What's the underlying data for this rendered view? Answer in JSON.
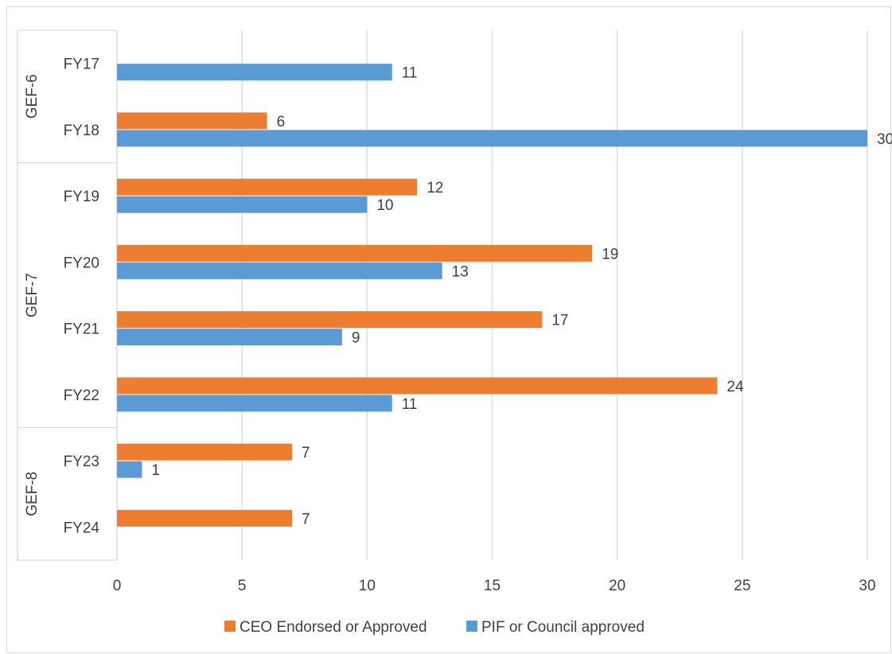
{
  "chart_data": {
    "type": "bar",
    "orientation": "horizontal",
    "title": "",
    "xlabel": "",
    "ylabel": "",
    "xlim": [
      0,
      30
    ],
    "x_ticks": [
      0,
      5,
      10,
      15,
      20,
      25,
      30
    ],
    "grid": true,
    "legend_position": "bottom",
    "groups": [
      {
        "label": "GEF-6",
        "categories": [
          "FY17",
          "FY18"
        ]
      },
      {
        "label": "GEF-7",
        "categories": [
          "FY19",
          "FY20",
          "FY21",
          "FY22"
        ]
      },
      {
        "label": "GEF-8",
        "categories": [
          "FY23",
          "FY24"
        ]
      }
    ],
    "categories": [
      "FY17",
      "FY18",
      "FY19",
      "FY20",
      "FY21",
      "FY22",
      "FY23",
      "FY24"
    ],
    "series": [
      {
        "name": "CEO Endorsed or Approved",
        "color": "#ed7d31",
        "values": [
          null,
          6,
          12,
          19,
          17,
          24,
          7,
          7
        ]
      },
      {
        "name": "PIF or Council approved",
        "color": "#5b9bd5",
        "values": [
          11,
          30,
          10,
          13,
          9,
          11,
          1,
          null
        ]
      }
    ]
  }
}
